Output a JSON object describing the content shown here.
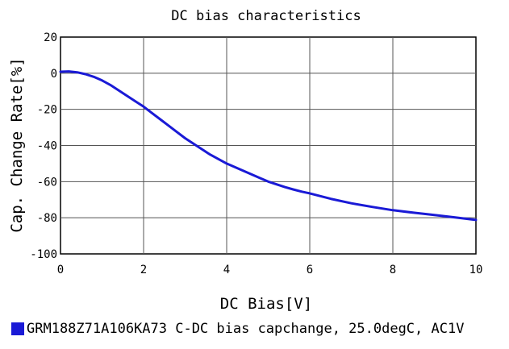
{
  "chart_data": {
    "type": "line",
    "title": "DC bias characteristics",
    "xlabel": "DC Bias[V]",
    "ylabel": "Cap. Change Rate[%]",
    "xlim": [
      0,
      10
    ],
    "ylim": [
      -100,
      20
    ],
    "xticks": [
      "0",
      "2",
      "4",
      "6",
      "8",
      "10"
    ],
    "yticks": [
      "20",
      "0",
      "-20",
      "-40",
      "-60",
      "-80",
      "-100"
    ],
    "grid": true,
    "legend_position": "bottom",
    "series": [
      {
        "name": "GRM188Z71A106KA73 C-DC bias capchange, 25.0degC, AC1V",
        "color": "#1a1ad6",
        "x": [
          0,
          0.2,
          0.4,
          0.6,
          0.8,
          1.0,
          1.2,
          1.4,
          1.6,
          1.8,
          2.0,
          2.2,
          2.4,
          2.6,
          2.8,
          3.0,
          3.2,
          3.4,
          3.6,
          3.8,
          4.0,
          4.2,
          4.4,
          4.6,
          4.8,
          5.0,
          5.2,
          5.4,
          5.6,
          5.8,
          6.0,
          6.5,
          7.0,
          7.5,
          8.0,
          8.5,
          9.0,
          9.5,
          10.0
        ],
        "y": [
          0.8,
          1.0,
          0.5,
          -0.5,
          -2.0,
          -4.0,
          -6.5,
          -9.5,
          -12.5,
          -15.5,
          -18.5,
          -22.0,
          -25.5,
          -29.0,
          -32.5,
          -36.0,
          -39.0,
          -42.0,
          -45.0,
          -47.5,
          -50.0,
          -52.0,
          -54.0,
          -56.0,
          -58.0,
          -60.0,
          -61.5,
          -63.0,
          -64.3,
          -65.5,
          -66.5,
          -69.5,
          -72.0,
          -74.0,
          -75.8,
          -77.2,
          -78.5,
          -79.8,
          -81.2
        ]
      }
    ]
  }
}
